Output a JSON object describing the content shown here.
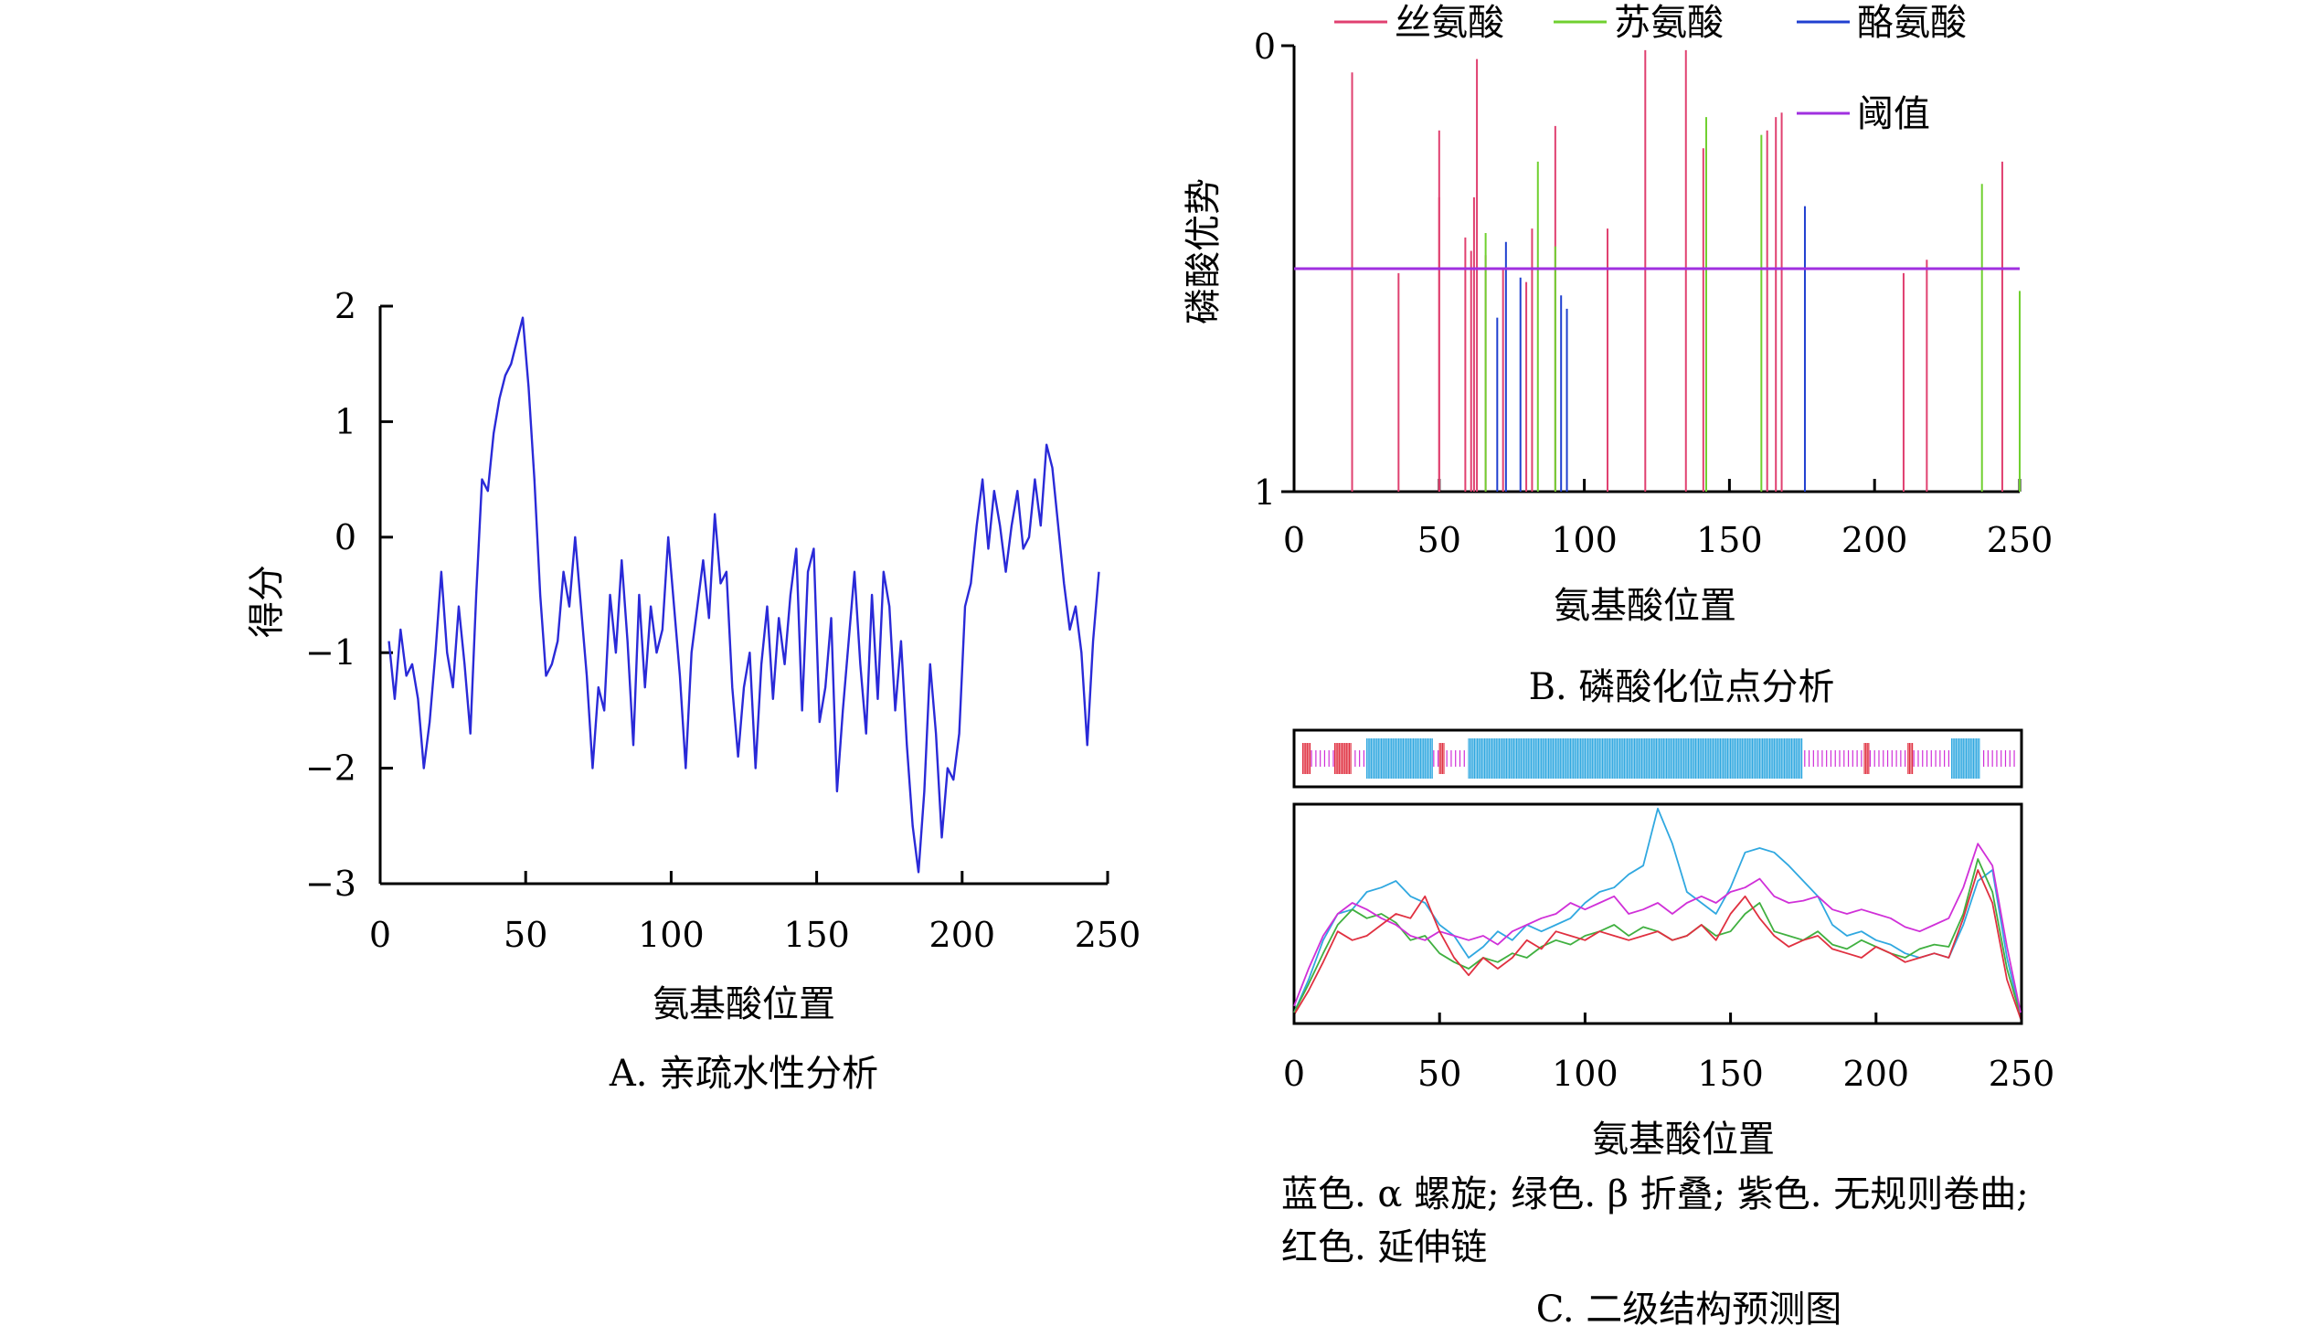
{
  "panels": {
    "A": {
      "caption": "A. 亲疏水性分析",
      "chart_data": {
        "type": "line",
        "xlabel": "氨基酸位置",
        "ylabel": "得分",
        "xlim": [
          0,
          250
        ],
        "ylim": [
          -3,
          2
        ],
        "xticks": [
          "0",
          "50",
          "100",
          "150",
          "200",
          "250"
        ],
        "yticks": [
          "2",
          "1",
          "0",
          "−1",
          "−2",
          "−3"
        ],
        "series": [
          {
            "color": "#2a2ad8",
            "x": [
              3,
              5,
              7,
              9,
              11,
              13,
              15,
              17,
              19,
              21,
              23,
              25,
              27,
              29,
              31,
              33,
              35,
              37,
              39,
              41,
              43,
              45,
              47,
              49,
              51,
              53,
              55,
              57,
              59,
              61,
              63,
              65,
              67,
              69,
              71,
              73,
              75,
              77,
              79,
              81,
              83,
              85,
              87,
              89,
              91,
              93,
              95,
              97,
              99,
              101,
              103,
              105,
              107,
              109,
              111,
              113,
              115,
              117,
              119,
              121,
              123,
              125,
              127,
              129,
              131,
              133,
              135,
              137,
              139,
              141,
              143,
              145,
              147,
              149,
              151,
              153,
              155,
              157,
              159,
              161,
              163,
              165,
              167,
              169,
              171,
              173,
              175,
              177,
              179,
              181,
              183,
              185,
              187,
              189,
              191,
              193,
              195,
              197,
              199,
              201,
              203,
              205,
              207,
              209,
              211,
              213,
              215,
              217,
              219,
              221,
              223,
              225,
              227,
              229,
              231,
              233,
              235,
              237,
              239,
              241,
              243,
              245,
              247
            ],
            "y": [
              -0.9,
              -1.4,
              -0.8,
              -1.2,
              -1.1,
              -1.4,
              -2.0,
              -1.6,
              -1.0,
              -0.3,
              -1.0,
              -1.3,
              -0.6,
              -1.1,
              -1.7,
              -0.5,
              0.5,
              0.4,
              0.9,
              1.2,
              1.4,
              1.5,
              1.7,
              1.9,
              1.3,
              0.5,
              -0.5,
              -1.2,
              -1.1,
              -0.9,
              -0.3,
              -0.6,
              0.0,
              -0.6,
              -1.2,
              -2.0,
              -1.3,
              -1.5,
              -0.5,
              -1.0,
              -0.2,
              -0.9,
              -1.8,
              -0.5,
              -1.3,
              -0.6,
              -1.0,
              -0.8,
              0.0,
              -0.6,
              -1.2,
              -2.0,
              -1.0,
              -0.6,
              -0.2,
              -0.7,
              0.2,
              -0.4,
              -0.3,
              -1.3,
              -1.9,
              -1.3,
              -1.0,
              -2.0,
              -1.1,
              -0.6,
              -1.4,
              -0.7,
              -1.1,
              -0.5,
              -0.1,
              -1.5,
              -0.3,
              -0.1,
              -1.6,
              -1.3,
              -0.7,
              -2.2,
              -1.5,
              -0.9,
              -0.3,
              -1.1,
              -1.7,
              -0.5,
              -1.4,
              -0.3,
              -0.6,
              -1.5,
              -0.9,
              -1.8,
              -2.5,
              -2.9,
              -2.2,
              -1.1,
              -1.7,
              -2.6,
              -2.0,
              -2.1,
              -1.7,
              -0.6,
              -0.4,
              0.1,
              0.5,
              -0.1,
              0.4,
              0.1,
              -0.3,
              0.1,
              0.4,
              -0.1,
              0.0,
              0.5,
              0.1,
              0.8,
              0.6,
              0.1,
              -0.4,
              -0.8,
              -0.6,
              -1.0,
              -1.8,
              -0.9,
              -0.3
            ]
          }
        ]
      }
    },
    "B": {
      "caption": "B. 磷酸化位点分析",
      "chart_data": {
        "type": "bar",
        "xlabel": "氨基酸位置",
        "ylabel": "磷酸优势",
        "xlim": [
          0,
          250
        ],
        "ylim": [
          1,
          0
        ],
        "xticks": [
          "0",
          "50",
          "100",
          "150",
          "200",
          "250"
        ],
        "yticks": [
          "0",
          "1"
        ],
        "threshold": 0.5,
        "legend_position": "top-right",
        "series": [
          {
            "name": "丝氨酸",
            "color": "#e04070",
            "x": [
              20,
              36,
              50,
              50,
              59,
              61,
              62,
              63,
              66,
              72,
              80,
              82,
              90,
              108,
              121,
              135,
              141,
              163,
              166,
              168,
              210,
              218,
              244
            ],
            "y": [
              0.06,
              0.51,
              0.19,
              0.34,
              0.43,
              0.46,
              0.34,
              0.03,
              0.47,
              0.5,
              0.53,
              0.41,
              0.18,
              0.41,
              0.01,
              0.01,
              0.23,
              0.19,
              0.16,
              0.15,
              0.51,
              0.48,
              0.26
            ]
          },
          {
            "name": "苏氨酸",
            "color": "#70d030",
            "x": [
              66,
              84,
              90,
              142,
              161,
              237,
              250
            ],
            "y": [
              0.42,
              0.26,
              0.45,
              0.16,
              0.2,
              0.31,
              0.55
            ]
          },
          {
            "name": "酪氨酸",
            "color": "#2040d0",
            "x": [
              70,
              73,
              78,
              92,
              94,
              176
            ],
            "y": [
              0.61,
              0.44,
              0.52,
              0.56,
              0.59,
              0.36
            ]
          },
          {
            "name": "阈值",
            "color": "#a030e0",
            "x": [
              0,
              250
            ],
            "y": [
              0.5,
              0.5
            ]
          }
        ]
      }
    },
    "C": {
      "caption": "C. 二级结构预测图",
      "note_line1": "蓝色. α 螺旋; 绿色. β 折叠; 紫色. 无规则卷曲;",
      "note_line2": "红色. 延伸链",
      "chart_data": {
        "type": "line",
        "xlabel": "氨基酸位置",
        "xlim": [
          0,
          250
        ],
        "xticks": [
          "0",
          "50",
          "100",
          "150",
          "200",
          "250"
        ],
        "ylim": [
          0,
          1
        ],
        "series": [
          {
            "color": "#30a8e0",
            "x": [
              0,
              5,
              10,
              15,
              20,
              25,
              30,
              35,
              40,
              45,
              50,
              55,
              60,
              65,
              70,
              75,
              80,
              85,
              90,
              95,
              100,
              105,
              110,
              115,
              120,
              125,
              130,
              135,
              140,
              145,
              150,
              155,
              160,
              165,
              170,
              175,
              180,
              185,
              190,
              195,
              200,
              205,
              210,
              215,
              220,
              225,
              230,
              235,
              240,
              245,
              250
            ],
            "y": [
              0.05,
              0.2,
              0.38,
              0.5,
              0.52,
              0.6,
              0.62,
              0.65,
              0.58,
              0.55,
              0.45,
              0.4,
              0.3,
              0.35,
              0.42,
              0.38,
              0.45,
              0.42,
              0.45,
              0.48,
              0.55,
              0.6,
              0.62,
              0.68,
              0.72,
              0.98,
              0.82,
              0.6,
              0.55,
              0.5,
              0.62,
              0.78,
              0.8,
              0.78,
              0.72,
              0.65,
              0.58,
              0.45,
              0.4,
              0.42,
              0.38,
              0.36,
              0.32,
              0.3,
              0.32,
              0.3,
              0.45,
              0.65,
              0.7,
              0.3,
              0.02
            ]
          },
          {
            "color": "#40b040",
            "x": [
              0,
              5,
              10,
              15,
              20,
              25,
              30,
              35,
              40,
              45,
              50,
              55,
              60,
              65,
              70,
              75,
              80,
              85,
              90,
              95,
              100,
              105,
              110,
              115,
              120,
              125,
              130,
              135,
              140,
              145,
              150,
              155,
              160,
              165,
              170,
              175,
              180,
              185,
              190,
              195,
              200,
              205,
              210,
              215,
              220,
              225,
              230,
              235,
              240,
              245,
              250
            ],
            "y": [
              0.05,
              0.18,
              0.32,
              0.45,
              0.52,
              0.48,
              0.5,
              0.46,
              0.38,
              0.4,
              0.32,
              0.28,
              0.25,
              0.3,
              0.28,
              0.32,
              0.3,
              0.35,
              0.38,
              0.36,
              0.4,
              0.42,
              0.45,
              0.4,
              0.44,
              0.42,
              0.38,
              0.4,
              0.45,
              0.4,
              0.42,
              0.5,
              0.55,
              0.42,
              0.4,
              0.38,
              0.42,
              0.36,
              0.34,
              0.38,
              0.35,
              0.32,
              0.3,
              0.34,
              0.36,
              0.35,
              0.5,
              0.75,
              0.6,
              0.25,
              0.02
            ]
          },
          {
            "color": "#d030d8",
            "x": [
              0,
              5,
              10,
              15,
              20,
              25,
              30,
              35,
              40,
              45,
              50,
              55,
              60,
              65,
              70,
              75,
              80,
              85,
              90,
              95,
              100,
              105,
              110,
              115,
              120,
              125,
              130,
              135,
              140,
              145,
              150,
              155,
              160,
              165,
              170,
              175,
              180,
              185,
              190,
              195,
              200,
              205,
              210,
              215,
              220,
              225,
              230,
              235,
              240,
              245,
              250
            ],
            "y": [
              0.08,
              0.25,
              0.4,
              0.5,
              0.55,
              0.52,
              0.48,
              0.45,
              0.4,
              0.38,
              0.42,
              0.4,
              0.38,
              0.4,
              0.36,
              0.42,
              0.45,
              0.48,
              0.5,
              0.55,
              0.52,
              0.55,
              0.58,
              0.5,
              0.52,
              0.55,
              0.5,
              0.55,
              0.58,
              0.55,
              0.6,
              0.62,
              0.66,
              0.58,
              0.55,
              0.56,
              0.58,
              0.52,
              0.5,
              0.52,
              0.5,
              0.48,
              0.44,
              0.42,
              0.45,
              0.48,
              0.62,
              0.82,
              0.72,
              0.35,
              0.03
            ]
          },
          {
            "color": "#e03040",
            "x": [
              0,
              5,
              10,
              15,
              20,
              25,
              30,
              35,
              40,
              45,
              50,
              55,
              60,
              65,
              70,
              75,
              80,
              85,
              90,
              95,
              100,
              105,
              110,
              115,
              120,
              125,
              130,
              135,
              140,
              145,
              150,
              155,
              160,
              165,
              170,
              175,
              180,
              185,
              190,
              195,
              200,
              205,
              210,
              215,
              220,
              225,
              230,
              235,
              240,
              245,
              250
            ],
            "y": [
              0.04,
              0.15,
              0.28,
              0.42,
              0.38,
              0.4,
              0.45,
              0.5,
              0.48,
              0.58,
              0.42,
              0.3,
              0.22,
              0.3,
              0.25,
              0.3,
              0.38,
              0.34,
              0.42,
              0.4,
              0.38,
              0.42,
              0.4,
              0.38,
              0.4,
              0.42,
              0.38,
              0.4,
              0.45,
              0.38,
              0.5,
              0.58,
              0.48,
              0.4,
              0.35,
              0.38,
              0.4,
              0.34,
              0.32,
              0.3,
              0.35,
              0.32,
              0.28,
              0.3,
              0.32,
              0.3,
              0.48,
              0.7,
              0.55,
              0.2,
              0.01
            ]
          }
        ]
      }
    }
  }
}
